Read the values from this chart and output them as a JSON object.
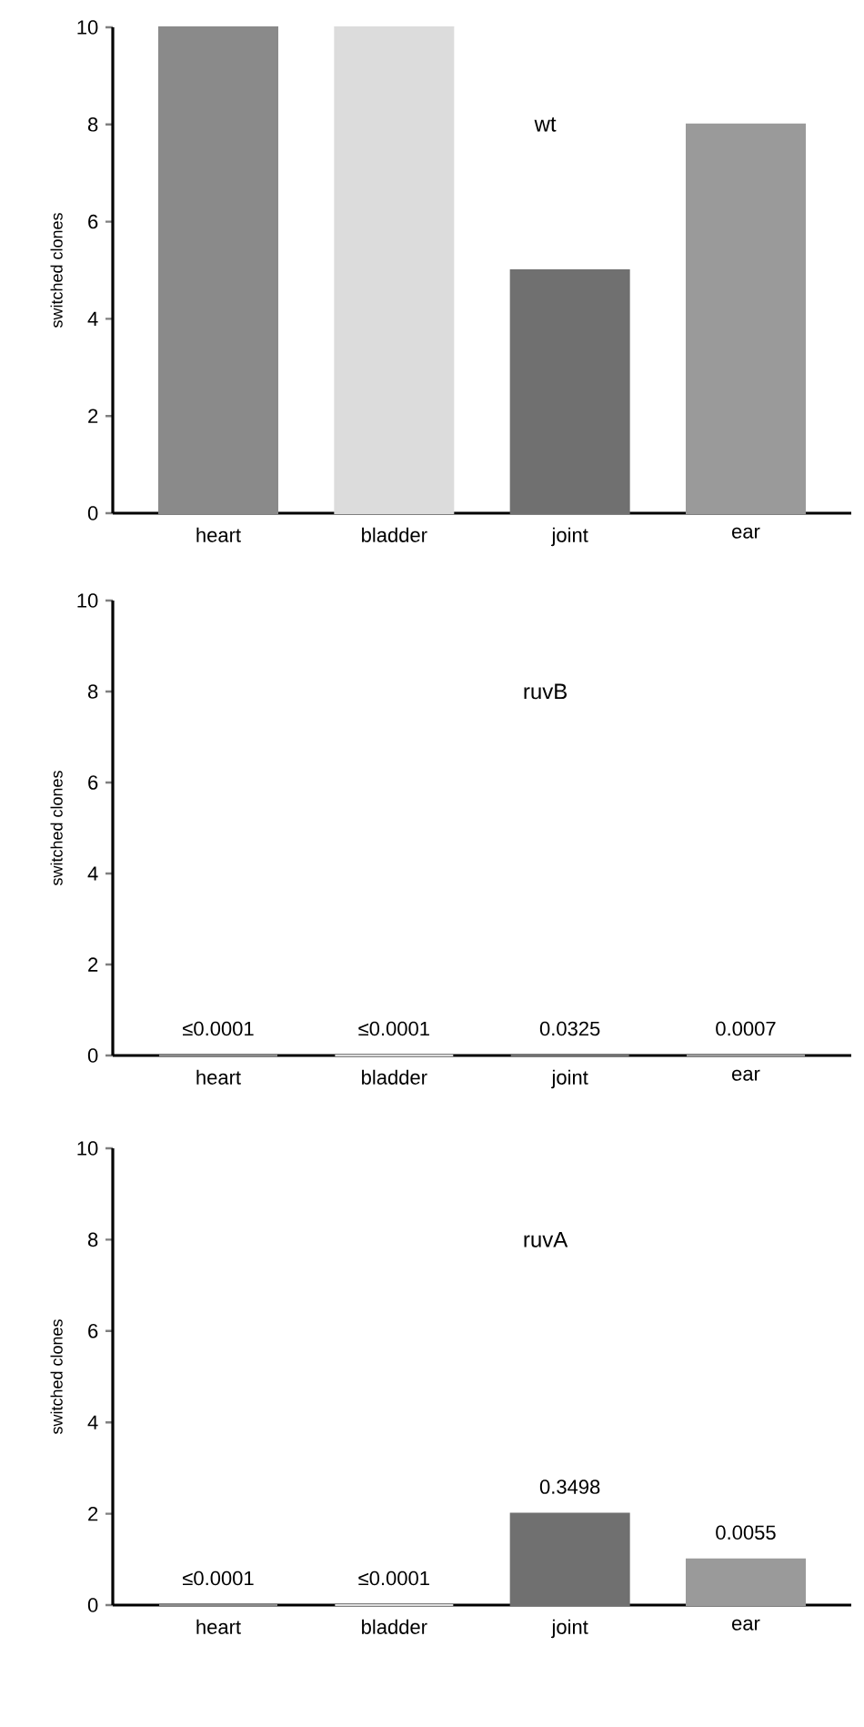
{
  "chart_data": [
    {
      "type": "bar",
      "title": "wt",
      "ylabel": "switched clones",
      "categories": [
        "heart",
        "bladder",
        "joint",
        "ear"
      ],
      "values": [
        10,
        10,
        5,
        8
      ],
      "colors": [
        "#8a8a8a",
        "#dcdcdc",
        "#707070",
        "#9a9a9a"
      ],
      "ylim": [
        0,
        10
      ],
      "yticks": [
        0,
        2,
        4,
        6,
        8,
        10
      ]
    },
    {
      "type": "bar",
      "title": "ruvB",
      "ylabel": "switched clones",
      "categories": [
        "heart",
        "bladder",
        "joint",
        "ear"
      ],
      "values": [
        0,
        0,
        0,
        0
      ],
      "colors": [
        "#8a8a8a",
        "#dcdcdc",
        "#707070",
        "#9a9a9a"
      ],
      "ylim": [
        0,
        10
      ],
      "yticks": [
        0,
        2,
        4,
        6,
        8,
        10
      ],
      "annotations": [
        "≤0.0001",
        "≤0.0001",
        "0.0325",
        "0.0007"
      ]
    },
    {
      "type": "bar",
      "title": "ruvA",
      "ylabel": "switched clones",
      "categories": [
        "heart",
        "bladder",
        "joint",
        "ear"
      ],
      "values": [
        0,
        0,
        2,
        1
      ],
      "colors": [
        "#8a8a8a",
        "#dcdcdc",
        "#707070",
        "#9a9a9a"
      ],
      "ylim": [
        0,
        10
      ],
      "yticks": [
        0,
        2,
        4,
        6,
        8,
        10
      ],
      "annotations": [
        "≤0.0001",
        "≤0.0001",
        "0.3498",
        "0.0055"
      ]
    }
  ]
}
